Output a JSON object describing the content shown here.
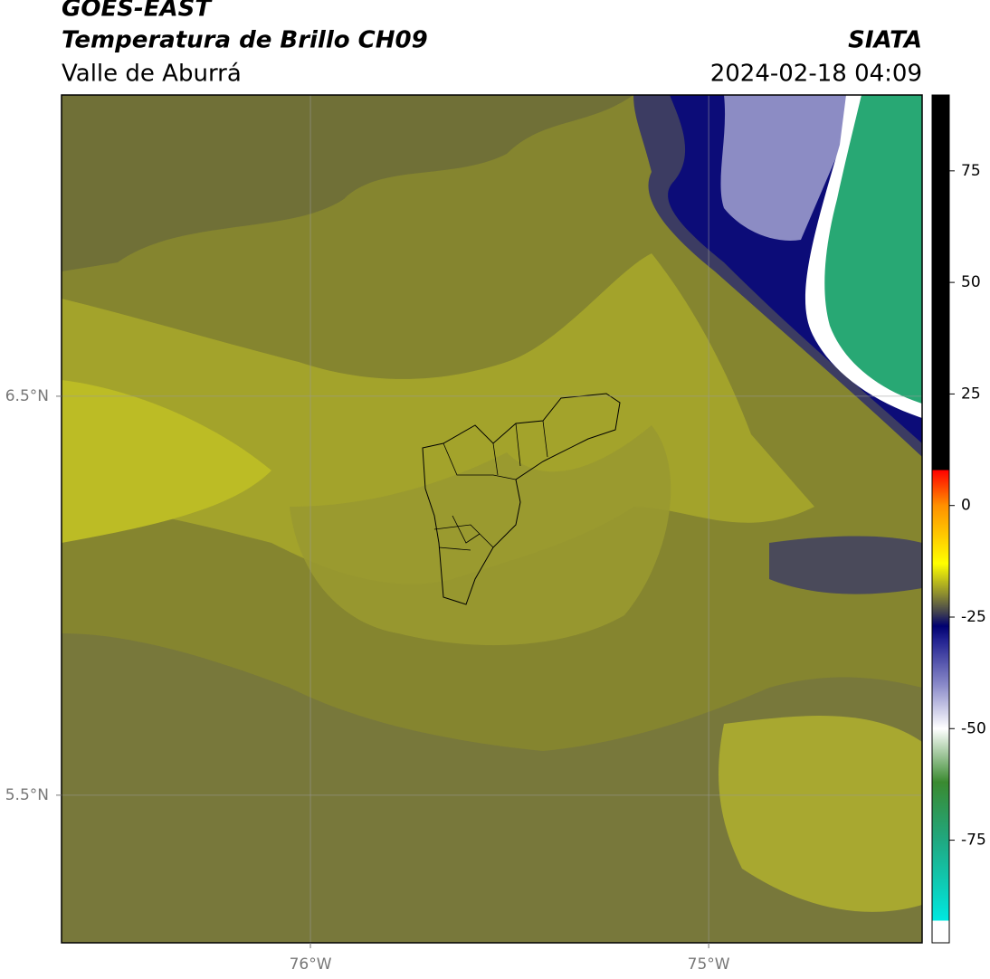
{
  "header": {
    "title": "GOES-EAST",
    "subtitle": "Temperatura de Brillo CH09",
    "region": "Valle de Aburrá",
    "source": "SIATA",
    "datetime": "2024-02-18 04:09"
  },
  "map": {
    "xlim": [
      -76.625,
      -74.464
    ],
    "ylim": [
      5.13,
      7.255
    ],
    "xticks": [
      {
        "value": -76,
        "label": "76°W"
      },
      {
        "value": -75,
        "label": "75°W"
      }
    ],
    "yticks": [
      {
        "value": 6.5,
        "label": "6.5°N"
      },
      {
        "value": 5.5,
        "label": "5.5°N"
      }
    ]
  },
  "colorbar": {
    "lim": [
      -98,
      92
    ],
    "ticks": [
      75,
      50,
      25,
      0,
      -25,
      -50,
      -75
    ],
    "stops": [
      {
        "value": -98,
        "color": "#ffffff"
      },
      {
        "value": -93,
        "color": "#ffffff"
      },
      {
        "value": -93,
        "color": "#00e8e0"
      },
      {
        "value": -75,
        "color": "#20a880"
      },
      {
        "value": -62,
        "color": "#3a8a30"
      },
      {
        "value": -50,
        "color": "#ffffff"
      },
      {
        "value": -40,
        "color": "#8888c8"
      },
      {
        "value": -30,
        "color": "#202090"
      },
      {
        "value": -27,
        "color": "#000070"
      },
      {
        "value": -24,
        "color": "#404050"
      },
      {
        "value": -20,
        "color": "#8a8a30"
      },
      {
        "value": -13,
        "color": "#ffff00"
      },
      {
        "value": 0,
        "color": "#ff9000"
      },
      {
        "value": 8,
        "color": "#ff0000"
      },
      {
        "value": 8,
        "color": "#000000"
      },
      {
        "value": 92,
        "color": "#000000"
      }
    ]
  }
}
